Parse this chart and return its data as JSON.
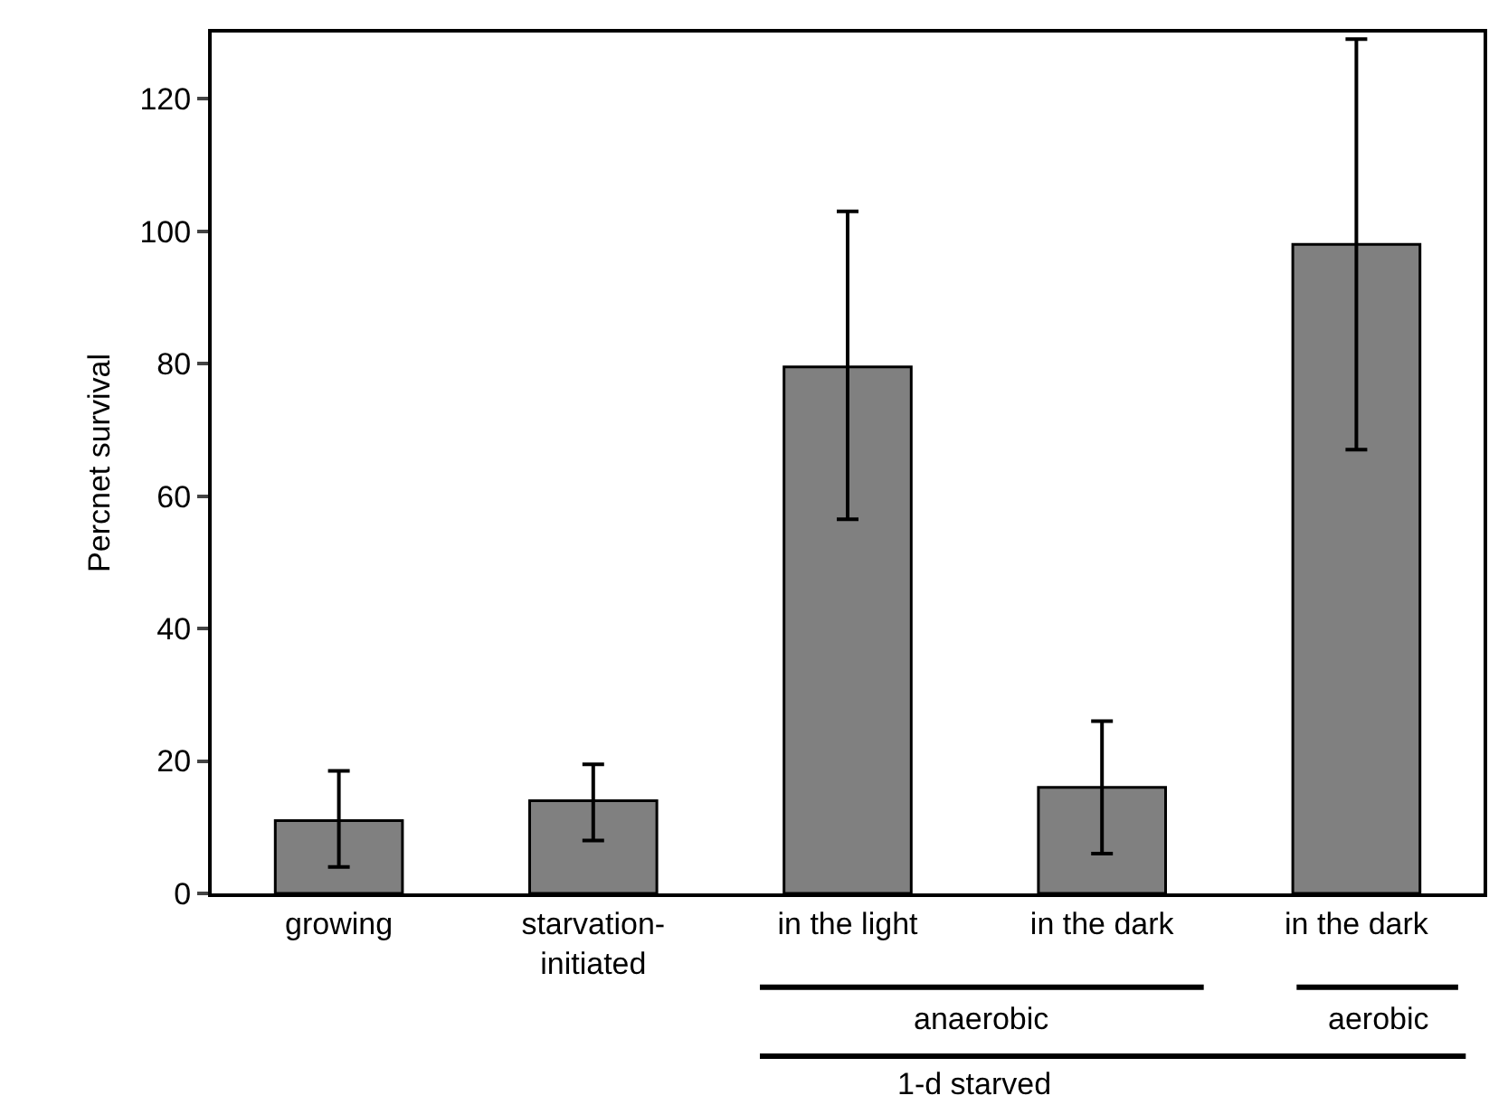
{
  "chart_data": {
    "type": "bar",
    "ylabel": "Percnet survival",
    "categories": [
      "growing",
      "starvation-\ninitiated",
      "in the light",
      "in the dark",
      "in the dark"
    ],
    "values": [
      11,
      14,
      79.5,
      16,
      98
    ],
    "errors": [
      [
        4,
        18.5
      ],
      [
        8,
        19.5
      ],
      [
        56.5,
        103
      ],
      [
        6,
        26
      ],
      [
        67,
        129
      ]
    ],
    "color": "#808080",
    "ylim": [
      0,
      130
    ],
    "yticks": [
      0,
      20,
      40,
      60,
      80,
      100,
      120
    ],
    "grid": false,
    "annotations": [
      "anaerobic",
      "aerobic",
      "1-d starved"
    ]
  }
}
